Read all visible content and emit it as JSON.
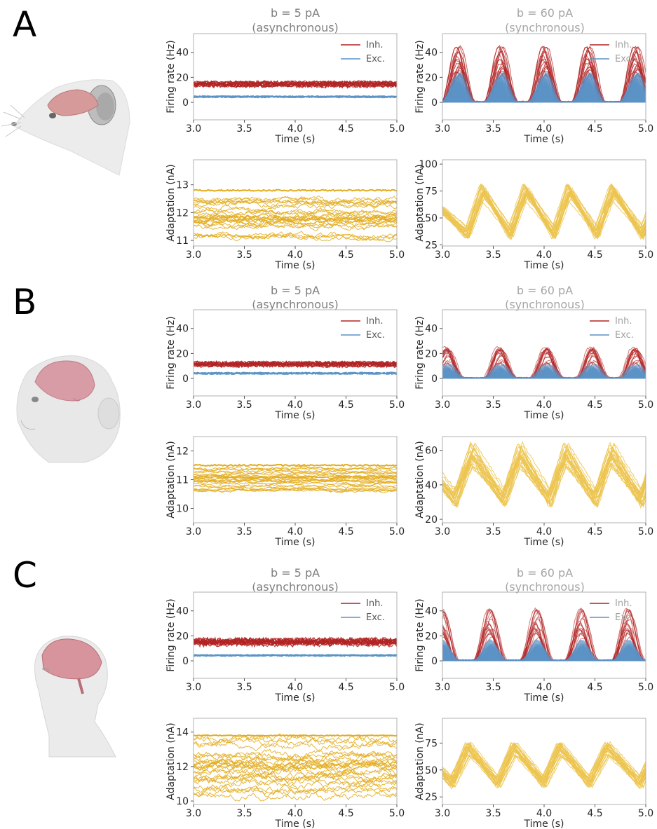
{
  "figure": {
    "panels": [
      {
        "letter": "A",
        "species_icon": "rat-head-icon"
      },
      {
        "letter": "B",
        "species_icon": "macaque-head-icon"
      },
      {
        "letter": "C",
        "species_icon": "human-head-icon"
      }
    ],
    "columns": [
      {
        "title_line1": "b = 5 pA",
        "title_line2": "(asynchronous)"
      },
      {
        "title_line1": "b = 60 pA",
        "title_line2": "(synchronous)"
      }
    ],
    "colors": {
      "inh": "#b22222",
      "exc": "#5b93c7",
      "adapt_async": "#e3ac1c",
      "adapt_sync": "#ecc44f",
      "legend_inh": "#b22222",
      "legend_exc": "#5b93c7"
    }
  },
  "chart_data": [
    {
      "panel": "A",
      "column": "async",
      "type": "line",
      "ylabel": "Firing rate (Hz)",
      "xlabel": "Time (s)",
      "xlim": [
        3.0,
        5.0
      ],
      "ylim": [
        -14,
        55
      ],
      "yticks": [
        0,
        20,
        40
      ],
      "xticks": [
        "3.0",
        "3.5",
        "4.0",
        "4.5",
        "5.0"
      ],
      "legend": {
        "position": "top-right",
        "entries": [
          "Inh.",
          "Exc."
        ]
      },
      "series": [
        {
          "name": "Inh.",
          "mean": 14.5,
          "spread": 5,
          "oscillating": false
        },
        {
          "name": "Exc.",
          "mean": 4.5,
          "spread": 2,
          "oscillating": false
        }
      ]
    },
    {
      "panel": "A",
      "column": "sync",
      "type": "line",
      "ylabel": "Firing rate (Hz)",
      "xlabel": "Time (s)",
      "xlim": [
        3.0,
        5.0
      ],
      "ylim": [
        -14,
        55
      ],
      "yticks": [
        0,
        20,
        40
      ],
      "xticks": [
        "3.0",
        "3.5",
        "4.0",
        "4.5",
        "5.0"
      ],
      "legend": {
        "position": "top-right",
        "entries": [
          "Inh.",
          "Exc."
        ]
      },
      "peak_times": [
        3.2,
        3.62,
        4.05,
        4.48,
        4.95
      ],
      "inh_peak": 33,
      "exc_peak": 17
    },
    {
      "panel": "A",
      "column": "async",
      "type": "line",
      "ylabel": "Adaptation (nA)",
      "xlabel": "Time (s)",
      "xlim": [
        3.0,
        5.0
      ],
      "ylim": [
        10.8,
        13.9
      ],
      "yticks": [
        11,
        12,
        13
      ],
      "xticks": [
        "3.0",
        "3.5",
        "4.0",
        "4.5",
        "5.0"
      ],
      "band": [
        11.1,
        12.6
      ],
      "top_trace": 12.8
    },
    {
      "panel": "A",
      "column": "sync",
      "type": "line",
      "ylabel": "Adaptation (nA)",
      "xlabel": "Time (s)",
      "xlim": [
        3.0,
        5.0
      ],
      "ylim": [
        24,
        104
      ],
      "yticks": [
        25,
        50,
        75,
        100
      ],
      "xticks": [
        "3.0",
        "3.5",
        "4.0",
        "4.5",
        "5.0"
      ],
      "sawtooth": {
        "low": 35,
        "high": 75,
        "reset_times": [
          3.25,
          3.67,
          4.1,
          4.52,
          4.97
        ]
      }
    },
    {
      "panel": "B",
      "column": "async",
      "type": "line",
      "ylabel": "Firing rate (Hz)",
      "xlabel": "Time (s)",
      "xlim": [
        3.0,
        5.0
      ],
      "ylim": [
        -14,
        55
      ],
      "yticks": [
        0,
        20,
        40
      ],
      "xticks": [
        "3.0",
        "3.5",
        "4.0",
        "4.5",
        "5.0"
      ],
      "legend": {
        "position": "top-right",
        "entries": [
          "Inh.",
          "Exc."
        ]
      },
      "series": [
        {
          "name": "Inh.",
          "mean": 11,
          "spread": 5,
          "oscillating": false
        },
        {
          "name": "Exc.",
          "mean": 4,
          "spread": 2,
          "oscillating": false
        }
      ]
    },
    {
      "panel": "B",
      "column": "sync",
      "type": "line",
      "ylabel": "Firing rate (Hz)",
      "xlabel": "Time (s)",
      "xlim": [
        3.0,
        5.0
      ],
      "ylim": [
        -14,
        55
      ],
      "yticks": [
        0,
        20,
        40
      ],
      "xticks": [
        "3.0",
        "3.5",
        "4.0",
        "4.5",
        "5.0"
      ],
      "legend": {
        "position": "top-right",
        "entries": [
          "Inh.",
          "Exc."
        ]
      },
      "peak_times": [
        3.1,
        3.62,
        4.08,
        4.53,
        4.95
      ],
      "inh_peak": 20,
      "exc_peak": 8
    },
    {
      "panel": "B",
      "column": "async",
      "type": "line",
      "ylabel": "Adaptation (nA)",
      "xlabel": "Time (s)",
      "xlim": [
        3.0,
        5.0
      ],
      "ylim": [
        9.5,
        12.5
      ],
      "yticks": [
        10,
        11,
        12
      ],
      "xticks": [
        "3.0",
        "3.5",
        "4.0",
        "4.5",
        "5.0"
      ],
      "band": [
        10.6,
        11.4
      ],
      "top_trace": 11.5
    },
    {
      "panel": "B",
      "column": "sync",
      "type": "line",
      "ylabel": "Adaptation (nA)",
      "xlabel": "Time (s)",
      "xlim": [
        3.0,
        5.0
      ],
      "ylim": [
        18,
        68
      ],
      "yticks": [
        20,
        40,
        60
      ],
      "xticks": [
        "3.0",
        "3.5",
        "4.0",
        "4.5",
        "5.0"
      ],
      "sawtooth": {
        "low": 32,
        "high": 58,
        "reset_times": [
          3.12,
          3.6,
          4.05,
          4.5,
          4.95
        ]
      }
    },
    {
      "panel": "C",
      "column": "async",
      "type": "line",
      "ylabel": "Firing rate (Hz)",
      "xlabel": "Time (s)",
      "xlim": [
        3.0,
        5.0
      ],
      "ylim": [
        -14,
        55
      ],
      "yticks": [
        0,
        20,
        40
      ],
      "xticks": [
        "3.0",
        "3.5",
        "4.0",
        "4.5",
        "5.0"
      ],
      "legend": {
        "position": "top-right",
        "entries": [
          "Inh.",
          "Exc."
        ]
      },
      "series": [
        {
          "name": "Inh.",
          "mean": 15,
          "spread": 7,
          "oscillating": false
        },
        {
          "name": "Exc.",
          "mean": 4.5,
          "spread": 2,
          "oscillating": false
        }
      ]
    },
    {
      "panel": "C",
      "column": "sync",
      "type": "line",
      "ylabel": "Firing rate (Hz)",
      "xlabel": "Time (s)",
      "xlim": [
        3.0,
        5.0
      ],
      "ylim": [
        -14,
        55
      ],
      "yticks": [
        0,
        20,
        40
      ],
      "xticks": [
        "3.0",
        "3.5",
        "4.0",
        "4.5",
        "5.0"
      ],
      "legend": {
        "position": "top-right",
        "entries": [
          "Inh.",
          "Exc."
        ]
      },
      "peak_times": [
        3.05,
        3.52,
        3.98,
        4.42,
        4.88
      ],
      "inh_peak": 30,
      "exc_peak": 12
    },
    {
      "panel": "C",
      "column": "async",
      "type": "line",
      "ylabel": "Adaptation (nA)",
      "xlabel": "Time (s)",
      "xlim": [
        3.0,
        5.0
      ],
      "ylim": [
        9.8,
        14.8
      ],
      "yticks": [
        10,
        12,
        14
      ],
      "xticks": [
        "3.0",
        "3.5",
        "4.0",
        "4.5",
        "5.0"
      ],
      "band": [
        10.3,
        13.6
      ],
      "top_trace": 13.8
    },
    {
      "panel": "C",
      "column": "sync",
      "type": "line",
      "ylabel": "Adaptation (nA)",
      "xlabel": "Time (s)",
      "xlim": [
        3.0,
        5.0
      ],
      "ylim": [
        18,
        98
      ],
      "yticks": [
        25,
        50,
        75
      ],
      "xticks": [
        "3.0",
        "3.5",
        "4.0",
        "4.5",
        "5.0"
      ],
      "sawtooth": {
        "low": 38,
        "high": 70,
        "reset_times": [
          3.1,
          3.55,
          4.0,
          4.45,
          4.95
        ]
      }
    }
  ]
}
